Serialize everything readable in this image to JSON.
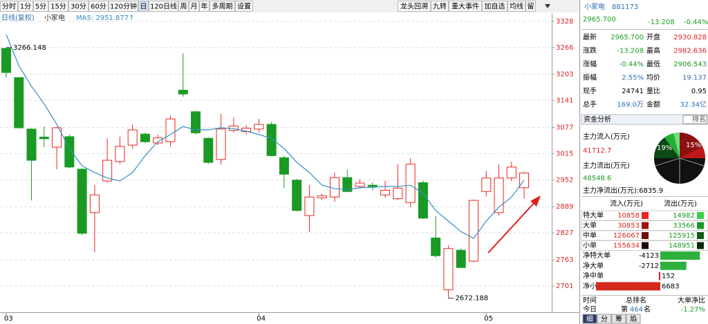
{
  "toolbar": {
    "left": [
      "分时",
      "1分",
      "5分",
      "15分",
      "30分",
      "60分",
      "120分钟",
      "日",
      "120日线",
      "周",
      "月",
      "年",
      "多周期",
      "设置"
    ],
    "right": [
      "龙头回溯",
      "九转",
      "重大事件",
      "加自选",
      "均线",
      "留"
    ]
  },
  "legend": {
    "mode": "日线(复权)",
    "name": "小家电",
    "ma": "MA5: 2951.877↑"
  },
  "chart_data": {
    "type": "candlestick",
    "up_color": "#e8261f",
    "down_color": "#1a9a24",
    "ylim": [
      2639,
      3346
    ],
    "yticks": [
      3328,
      3266,
      3203,
      3141,
      3077,
      3015,
      2952,
      2889,
      2827,
      2763,
      2701
    ],
    "x_labels": [
      {
        "index": 0,
        "label": "03"
      },
      {
        "index": 20,
        "label": "04"
      },
      {
        "index": 38,
        "label": "05"
      }
    ],
    "candles": {
      "open": [
        3264,
        3195,
        3073,
        3054,
        3030,
        3055,
        2978,
        2875,
        2950,
        2996,
        3035,
        3061,
        3040,
        3043,
        3165,
        3114,
        3051,
        3001,
        3070,
        3067,
        3073,
        3084,
        3005,
        2952,
        2868,
        2910,
        2912,
        2958,
        2937,
        2940,
        2917,
        2908,
        2899,
        2946,
        2815,
        2692,
        2786,
        2760,
        2925,
        2875,
        2957,
        2934
      ],
      "high": [
        3266.148,
        3195,
        3075,
        3079,
        3078,
        3060,
        2980,
        2940,
        3051,
        3055,
        3084,
        3065,
        3060,
        3105,
        3253,
        3116,
        3054,
        3109,
        3100,
        3082,
        3097,
        3090,
        3010,
        2955,
        2940,
        2920,
        2970,
        2977,
        2954,
        2947,
        2950,
        2990,
        3004,
        2950,
        2867,
        2798,
        2790,
        2906,
        2974,
        2989,
        2996,
        2972
      ],
      "low": [
        3195,
        3074,
        2904,
        3030,
        2978,
        2980,
        2822,
        2781,
        2947,
        2990,
        3027,
        3040,
        3035,
        3032,
        3150,
        3060,
        2990,
        2989,
        3065,
        3060,
        3065,
        3008,
        2933,
        2878,
        2830,
        2905,
        2901,
        2924,
        2932,
        2928,
        2910,
        2905,
        2888,
        2860,
        2768,
        2672.188,
        2743,
        2758,
        2913,
        2868,
        2950,
        2908
      ],
      "close": [
        3207,
        3076,
        2999,
        3050,
        3076,
        2983,
        2826,
        2917,
        2999,
        3032,
        3071,
        3043,
        3052,
        3097,
        3156,
        3064,
        2994,
        3073,
        3080,
        3075,
        3084,
        3010,
        2966,
        2880,
        2912,
        2915,
        2958,
        2925,
        2945,
        2937,
        2928,
        2933,
        2990,
        2862,
        2773,
        2790,
        2745,
        2904,
        2957,
        2957,
        2983,
        2969
      ]
    },
    "ma5": {
      "color": "#2f8fc4",
      "values": [
        3297,
        3223,
        3174,
        3133,
        3084,
        3027,
        2986,
        2970,
        2957,
        2950,
        2970,
        3010,
        3043,
        3060,
        3079,
        3071,
        3071,
        3076,
        3074,
        3068,
        3060,
        3051,
        3027,
        2994,
        2970,
        2940,
        2932,
        2929,
        2934,
        2935,
        2937,
        2937,
        2940,
        2921,
        2880,
        2855,
        2830,
        2814,
        2855,
        2888,
        2912,
        2951.877
      ]
    },
    "annotations": [
      {
        "index": 0,
        "value": 3266.148
      },
      {
        "index": 35,
        "value": 2672.188
      }
    ]
  },
  "quote": {
    "name": "小家电",
    "code": "881173",
    "price": "2965.700",
    "change": "-13.208",
    "pct": "-0.44%",
    "rows": [
      [
        "最新",
        "2965.700",
        "开盘",
        "2930.828"
      ],
      [
        "涨跌",
        "-13.208",
        "最高",
        "2982.636"
      ],
      [
        "涨幅",
        "-0.44%",
        "最低",
        "2906.543"
      ],
      [
        "振幅",
        "2.55%",
        "均价",
        "19.137"
      ],
      [
        "现手",
        "24741",
        "量比",
        "0.95"
      ],
      [
        "总手",
        "169.0万",
        "金额",
        "32.34亿"
      ]
    ]
  },
  "fund": {
    "title": "资金分析",
    "rank": "排名",
    "inflow_label": "主力流入(万元)",
    "inflow": "41712.7",
    "outflow_label": "主力流出(万元)",
    "outflow": "48548.6",
    "net": "主力净流出(万元):6835.9",
    "pie_labels": [
      "19%",
      "15%"
    ]
  },
  "flow": {
    "header": [
      "流入(万元)",
      "流出(万元)"
    ],
    "rows": [
      [
        "特大单",
        "10858",
        "14982"
      ],
      [
        "大单",
        "30853",
        "33566"
      ],
      [
        "中单",
        "126067",
        "125915"
      ],
      [
        "小单",
        "155634",
        "148951"
      ]
    ]
  },
  "net": {
    "rows": [
      {
        "label": "净特大单",
        "value": -4123
      },
      {
        "label": "净大单",
        "value": -2712
      },
      {
        "label": "净中单",
        "value": 152
      },
      {
        "label": "净小单",
        "value": 6683
      }
    ]
  },
  "rank": {
    "header": [
      "时间",
      "总排名",
      "大单净比"
    ],
    "row": [
      "今日",
      "第",
      "464",
      "名",
      "-1.27%"
    ]
  },
  "tabs": [
    "细",
    "分",
    "筹",
    "焰"
  ]
}
